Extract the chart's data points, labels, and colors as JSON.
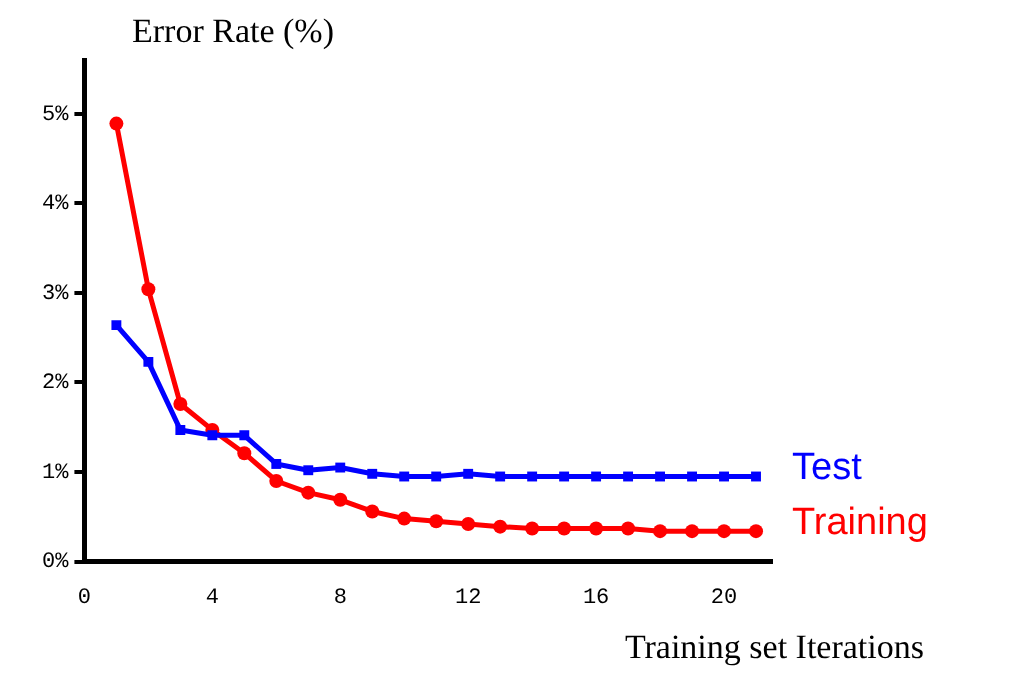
{
  "chart_data": {
    "type": "line",
    "ylabel": "Error Rate (%)",
    "xlabel": "Training set Iterations",
    "x": [
      1,
      2,
      3,
      4,
      5,
      6,
      7,
      8,
      9,
      10,
      11,
      12,
      13,
      14,
      15,
      16,
      17,
      18,
      19,
      20,
      21
    ],
    "series": [
      {
        "name": "Test",
        "color": "#0000ff",
        "marker": "square",
        "values": [
          2.64,
          2.23,
          1.47,
          1.41,
          1.41,
          1.09,
          1.02,
          1.05,
          0.98,
          0.95,
          0.95,
          0.98,
          0.95,
          0.95,
          0.95,
          0.95,
          0.95,
          0.95,
          0.95,
          0.95,
          0.95
        ]
      },
      {
        "name": "Training",
        "color": "#ff0000",
        "marker": "circle",
        "values": [
          4.89,
          3.04,
          1.76,
          1.47,
          1.21,
          0.9,
          0.77,
          0.69,
          0.56,
          0.48,
          0.45,
          0.42,
          0.39,
          0.37,
          0.37,
          0.37,
          0.37,
          0.34,
          0.34,
          0.34,
          0.34
        ]
      }
    ],
    "xlim": [
      0,
      21.5
    ],
    "xticks": [
      0,
      4,
      8,
      12,
      16,
      20
    ],
    "ylim": [
      0,
      5.6
    ],
    "yticks": [
      {
        "value": 0,
        "label": "0%"
      },
      {
        "value": 1,
        "label": "1%"
      },
      {
        "value": 2,
        "label": "2%"
      },
      {
        "value": 3,
        "label": "3%"
      },
      {
        "value": 4,
        "label": "4%"
      },
      {
        "value": 5,
        "label": "5%"
      }
    ],
    "grid": false,
    "legend": false,
    "line_style": "solid"
  }
}
